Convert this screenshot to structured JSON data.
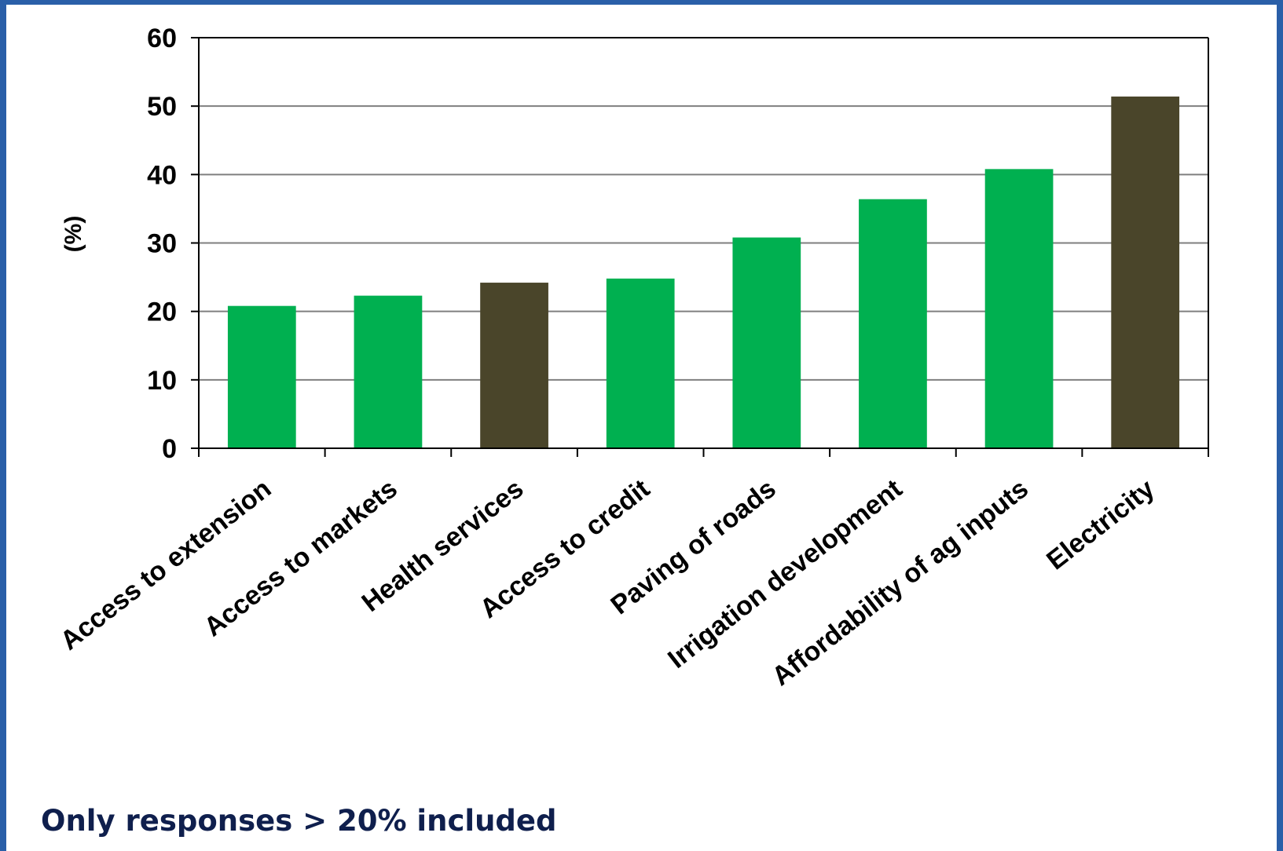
{
  "chart_data": {
    "type": "bar",
    "categories": [
      "Access to extension",
      "Access to markets",
      "Health services",
      "Access to credit",
      "Paving of roads",
      "Irrigation development",
      "Affordability of ag inputs",
      "Electricity"
    ],
    "values": [
      20.8,
      22.3,
      24.2,
      24.8,
      30.8,
      36.4,
      40.8,
      51.4
    ],
    "bar_colors": [
      "#00b050",
      "#00b050",
      "#4a452a",
      "#00b050",
      "#00b050",
      "#00b050",
      "#00b050",
      "#4a452a"
    ],
    "title": "",
    "xlabel": "",
    "ylabel": "(%)",
    "ylim": [
      0,
      60
    ],
    "yticks": [
      "0",
      "10",
      "20",
      "30",
      "40",
      "50",
      "60"
    ],
    "grid": true,
    "legend": "none"
  },
  "footnote": "Only responses > 20% included",
  "colors": {
    "frame": "#2a5fa8",
    "gridline": "#7f7f7f",
    "footnote_text": "#0f1f4d"
  }
}
